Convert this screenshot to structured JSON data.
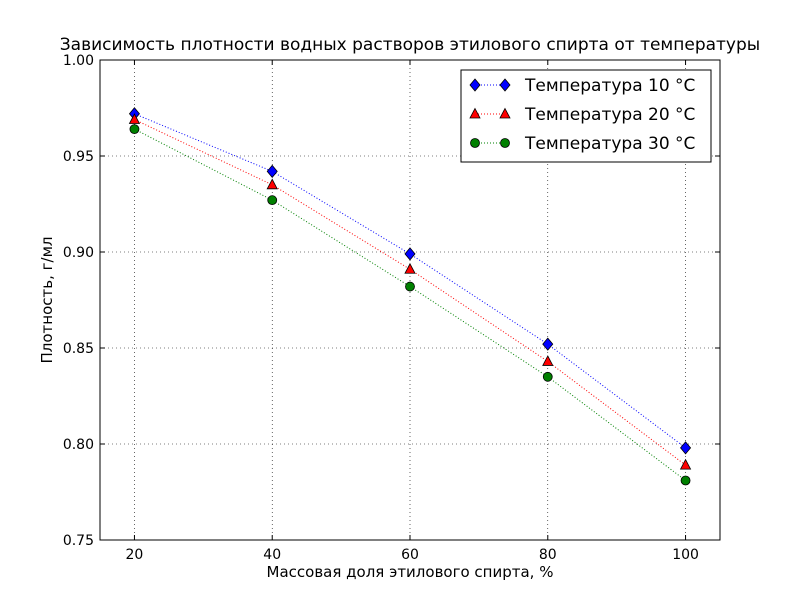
{
  "chart_data": {
    "type": "line",
    "title": "Зависимость плотности водных растворов этилового спирта от температуры",
    "xlabel": "Массовая доля этилового спирта, %",
    "ylabel": "Плотность, г/мл",
    "x": [
      20,
      40,
      60,
      80,
      100
    ],
    "x_ticks": [
      "20",
      "40",
      "60",
      "80",
      "100"
    ],
    "y_ticks": [
      "0.75",
      "0.80",
      "0.85",
      "0.90",
      "0.95",
      "1.00"
    ],
    "xlim": [
      15,
      105
    ],
    "ylim": [
      0.75,
      1.0
    ],
    "grid": true,
    "grid_style": "dotted",
    "legend_position": "top-right",
    "series": [
      {
        "name": "Температура 10 °C",
        "values": [
          0.972,
          0.942,
          0.899,
          0.852,
          0.798
        ],
        "color": "#0000ff",
        "marker": "diamond",
        "line_style": "dotted"
      },
      {
        "name": "Температура 20 °C",
        "values": [
          0.969,
          0.935,
          0.891,
          0.843,
          0.789
        ],
        "color": "#ff0000",
        "marker": "triangle",
        "line_style": "dotted"
      },
      {
        "name": "Температура 30 °C",
        "values": [
          0.964,
          0.927,
          0.882,
          0.835,
          0.781
        ],
        "color": "#008000",
        "marker": "circle",
        "line_style": "dotted"
      }
    ]
  }
}
